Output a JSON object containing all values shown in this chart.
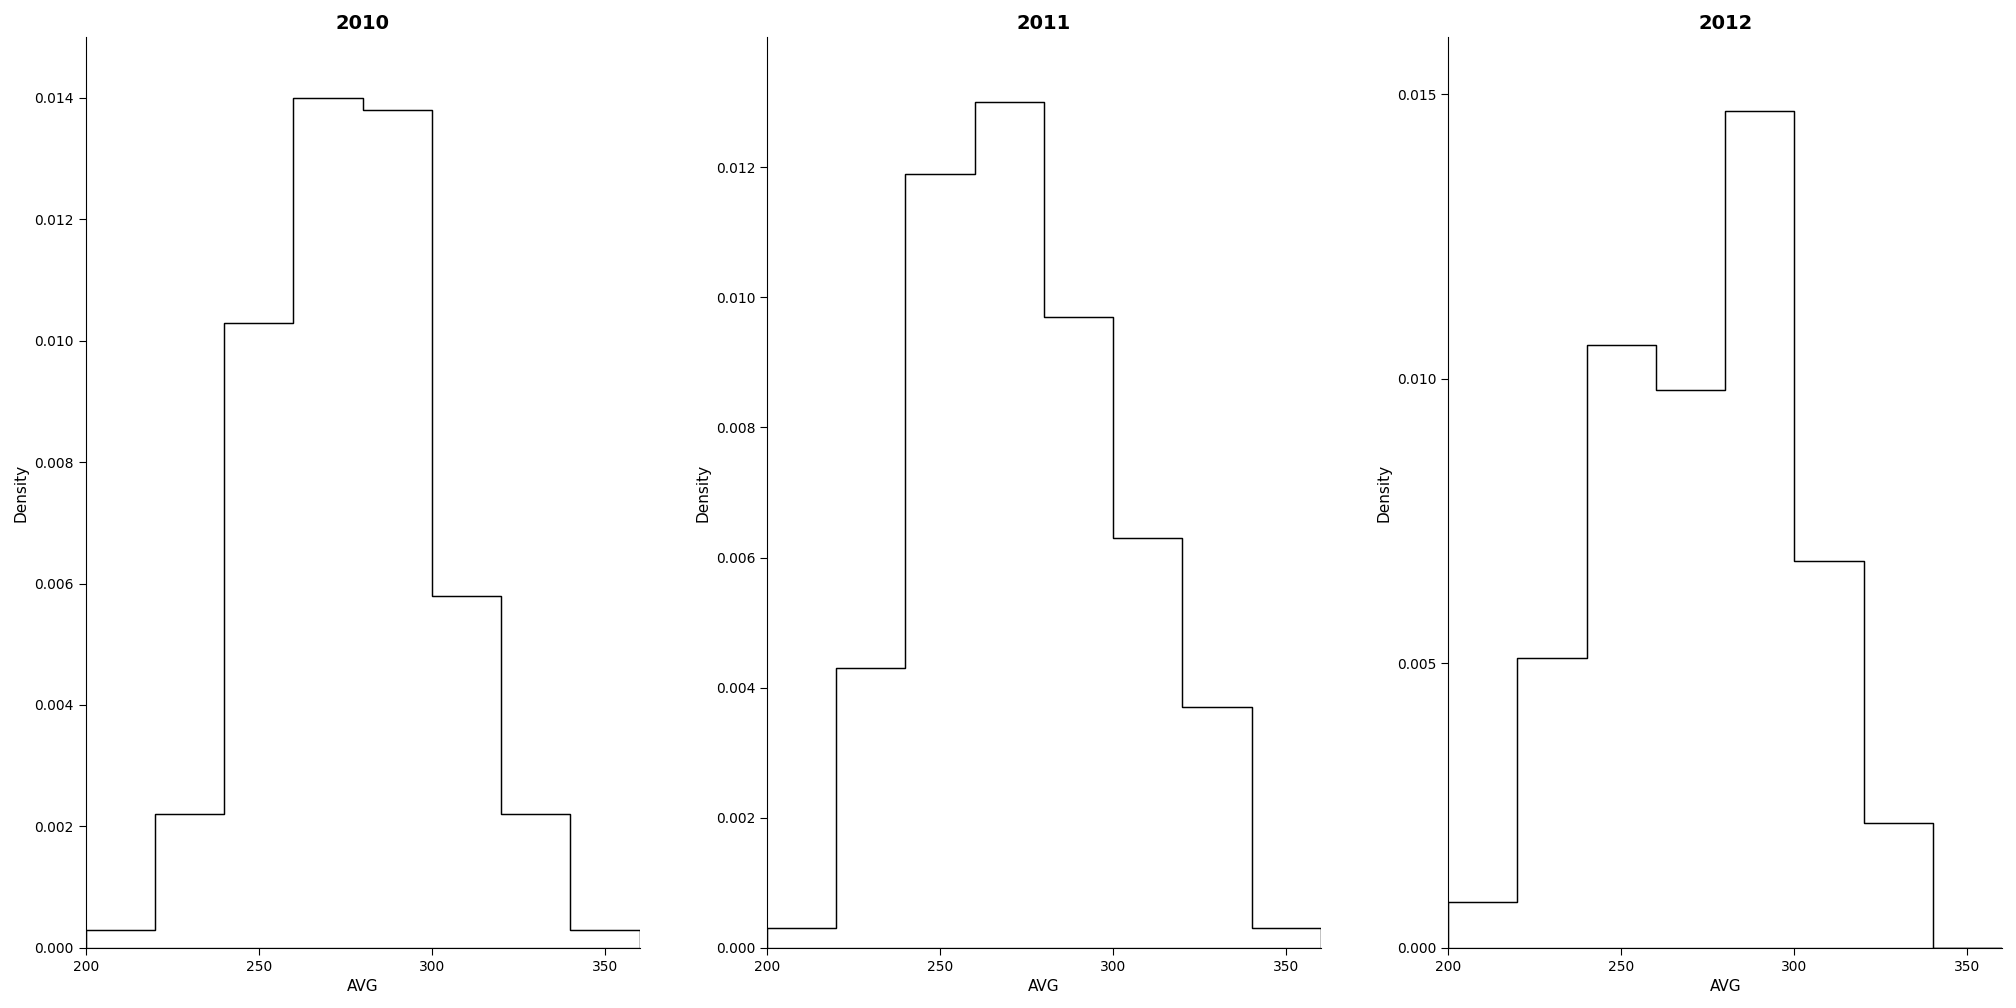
{
  "years": [
    "2010",
    "2011",
    "2012"
  ],
  "bin_edges": [
    200,
    220,
    240,
    260,
    280,
    300,
    320,
    340,
    360
  ],
  "densities": {
    "2010": [
      0.0003,
      0.0022,
      0.0103,
      0.014,
      0.0138,
      0.0058,
      0.0022,
      0.0003
    ],
    "2011": [
      0.0003,
      0.0043,
      0.0119,
      0.013,
      0.0097,
      0.0063,
      0.0037,
      0.0003
    ],
    "2012": [
      0.0008,
      0.0051,
      0.0106,
      0.0098,
      0.0147,
      0.0068,
      0.0022,
      0.0
    ]
  },
  "ylims": {
    "2010": [
      0,
      0.015
    ],
    "2011": [
      0,
      0.014
    ],
    "2012": [
      0,
      0.016
    ]
  },
  "yticks": {
    "2010": [
      0.0,
      0.002,
      0.004,
      0.006,
      0.008,
      0.01,
      0.012,
      0.014
    ],
    "2011": [
      0.0,
      0.002,
      0.004,
      0.006,
      0.008,
      0.01,
      0.012
    ],
    "2012": [
      0.0,
      0.005,
      0.01,
      0.015
    ]
  },
  "xlabel": "AVG",
  "ylabel": "Density",
  "xlim": [
    200,
    360
  ],
  "xticks": [
    200,
    250,
    300,
    350
  ],
  "bar_color": "#ffffff",
  "edge_color": "#000000",
  "title_fontsize": 14,
  "label_fontsize": 11,
  "tick_fontsize": 10,
  "background_color": "#ffffff"
}
